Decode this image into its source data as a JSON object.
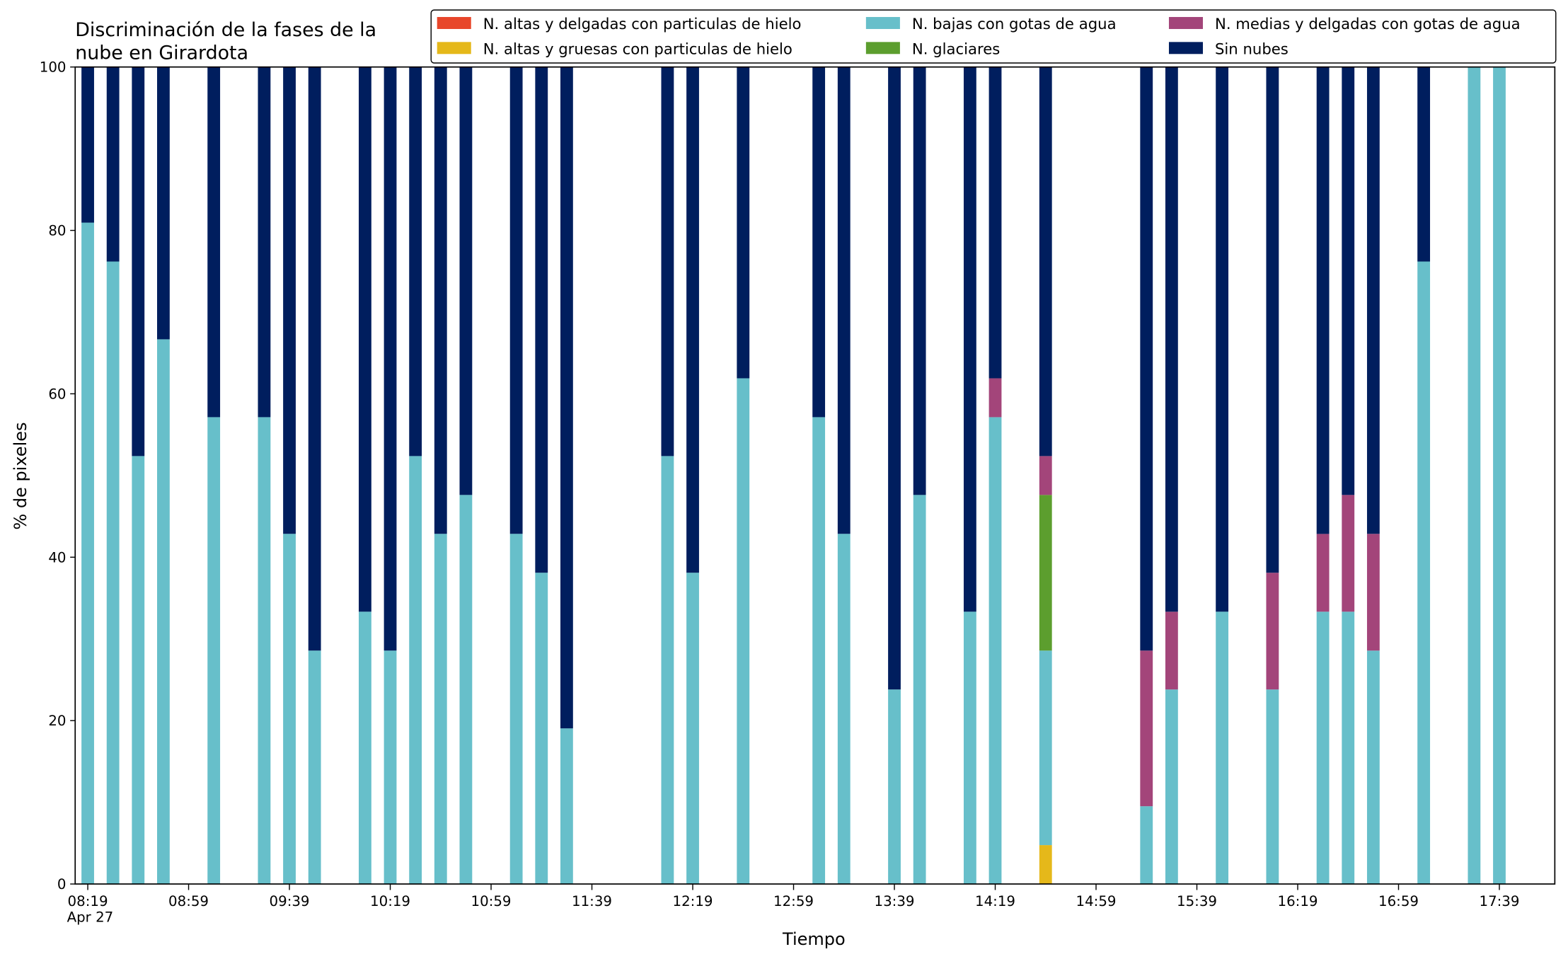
{
  "chart_data": {
    "type": "stacked_bar",
    "title": [
      "Discriminación de la fases de la",
      "nube en Girardota"
    ],
    "x_label": "Tiempo",
    "y_label": "% de pixeles",
    "x_date_label": "Apr 27",
    "x": [
      "08:19",
      "08:29",
      "08:39",
      "08:49",
      "09:09",
      "09:29",
      "09:39",
      "09:49",
      "10:09",
      "10:19",
      "10:29",
      "10:39",
      "10:49",
      "11:09",
      "11:19",
      "11:29",
      "12:09",
      "12:19",
      "12:39",
      "13:09",
      "13:19",
      "13:39",
      "13:49",
      "14:09",
      "14:19",
      "14:39",
      "15:19",
      "15:29",
      "15:49",
      "16:09",
      "16:29",
      "16:39",
      "16:49",
      "17:09",
      "17:29",
      "17:39"
    ],
    "xlim": [
      "08:14",
      "18:01"
    ],
    "xticks": [
      "08:19",
      "08:59",
      "09:39",
      "10:19",
      "10:59",
      "11:39",
      "12:19",
      "12:59",
      "13:39",
      "14:19",
      "14:59",
      "15:39",
      "16:19",
      "16:59",
      "17:39"
    ],
    "ylim": [
      0,
      100
    ],
    "yticks": [
      0,
      20,
      40,
      60,
      80,
      100
    ],
    "grid": false,
    "legend_position": "top-right",
    "series": [
      {
        "name": "N. altas y delgadas con particulas de hielo",
        "color": "#e8462a",
        "values": [
          0,
          0,
          0,
          0,
          0,
          0,
          0,
          0,
          0,
          0,
          0,
          0,
          0,
          0,
          0,
          0,
          0,
          0,
          0,
          0,
          0,
          0,
          0,
          0,
          0,
          0,
          0,
          0,
          0,
          0,
          0,
          0,
          0,
          0,
          0,
          0
        ]
      },
      {
        "name": "N. altas y gruesas con particulas de hielo",
        "color": "#e5b81a",
        "values": [
          0,
          0,
          0,
          0,
          0,
          0,
          0,
          0,
          0,
          0,
          0,
          0,
          0,
          0,
          0,
          0,
          0,
          0,
          0,
          0,
          0,
          0,
          0,
          0,
          0,
          4.76,
          0,
          0,
          0,
          0,
          0,
          0,
          0,
          0,
          0,
          0
        ]
      },
      {
        "name": "N. bajas con gotas de agua",
        "color": "#67bfca",
        "values": [
          80.95,
          76.19,
          52.38,
          66.67,
          57.14,
          57.14,
          42.86,
          28.57,
          33.33,
          28.57,
          52.38,
          42.86,
          47.62,
          42.86,
          38.1,
          19.05,
          52.38,
          38.1,
          61.9,
          57.14,
          42.86,
          23.81,
          47.62,
          33.33,
          57.14,
          23.81,
          9.52,
          23.81,
          33.33,
          23.81,
          33.33,
          33.33,
          28.57,
          76.19,
          100,
          100
        ]
      },
      {
        "name": "N. glaciares",
        "color": "#5c9e2e",
        "values": [
          0,
          0,
          0,
          0,
          0,
          0,
          0,
          0,
          0,
          0,
          0,
          0,
          0,
          0,
          0,
          0,
          0,
          0,
          0,
          0,
          0,
          0,
          0,
          0,
          0,
          19.05,
          0,
          0,
          0,
          0,
          0,
          0,
          0,
          0,
          0,
          0
        ]
      },
      {
        "name": "N. medias y delgadas con gotas de agua",
        "color": "#a3457a",
        "values": [
          0,
          0,
          0,
          0,
          0,
          0,
          0,
          0,
          0,
          0,
          0,
          0,
          0,
          0,
          0,
          0,
          0,
          0,
          0,
          0,
          0,
          0,
          0,
          0,
          4.76,
          4.76,
          19.05,
          9.52,
          0,
          14.29,
          9.52,
          14.29,
          14.29,
          0,
          0,
          0
        ]
      },
      {
        "name": "Sin nubes",
        "color": "#001e5e",
        "values": [
          19.05,
          23.81,
          47.62,
          33.33,
          42.86,
          42.86,
          57.14,
          71.43,
          66.67,
          71.43,
          47.62,
          57.14,
          52.38,
          57.14,
          61.9,
          80.95,
          47.62,
          61.9,
          38.1,
          42.86,
          57.14,
          76.19,
          52.38,
          66.67,
          38.1,
          47.62,
          71.43,
          66.67,
          66.67,
          61.9,
          57.14,
          52.38,
          57.14,
          23.81,
          0,
          0
        ]
      }
    ]
  }
}
